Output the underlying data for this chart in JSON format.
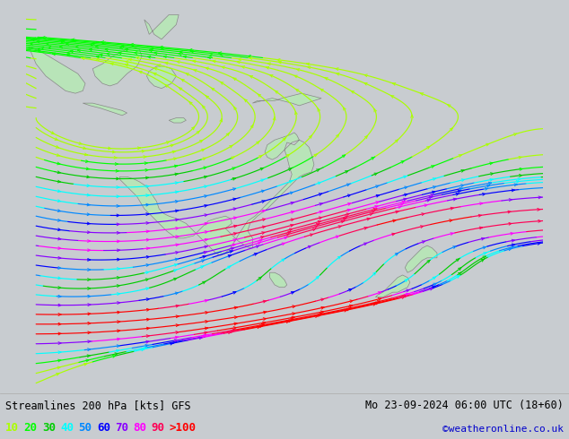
{
  "title_left": "Streamlines 200 hPa [kts] GFS",
  "title_right": "Mo 23-09-2024 06:00 UTC (18+60)",
  "credit": "©weatheronline.co.uk",
  "legend_values": [
    "10",
    "20",
    "30",
    "40",
    "50",
    "60",
    "70",
    "80",
    "90",
    ">100"
  ],
  "legend_colors": [
    "#aaff00",
    "#00ff00",
    "#00cc00",
    "#00ffff",
    "#0088ff",
    "#0000ff",
    "#8800ff",
    "#ff00ff",
    "#ff0055",
    "#ff0000"
  ],
  "bg_color": "#c8ccd0",
  "land_color": "#b8e4b8",
  "border_color": "#888888",
  "text_color": "#000000",
  "credit_color": "#0000cc",
  "figsize": [
    6.34,
    4.9
  ],
  "dpi": 100,
  "lon_min": 95,
  "lon_max": 200,
  "lat_min": -65,
  "lat_max": 15
}
